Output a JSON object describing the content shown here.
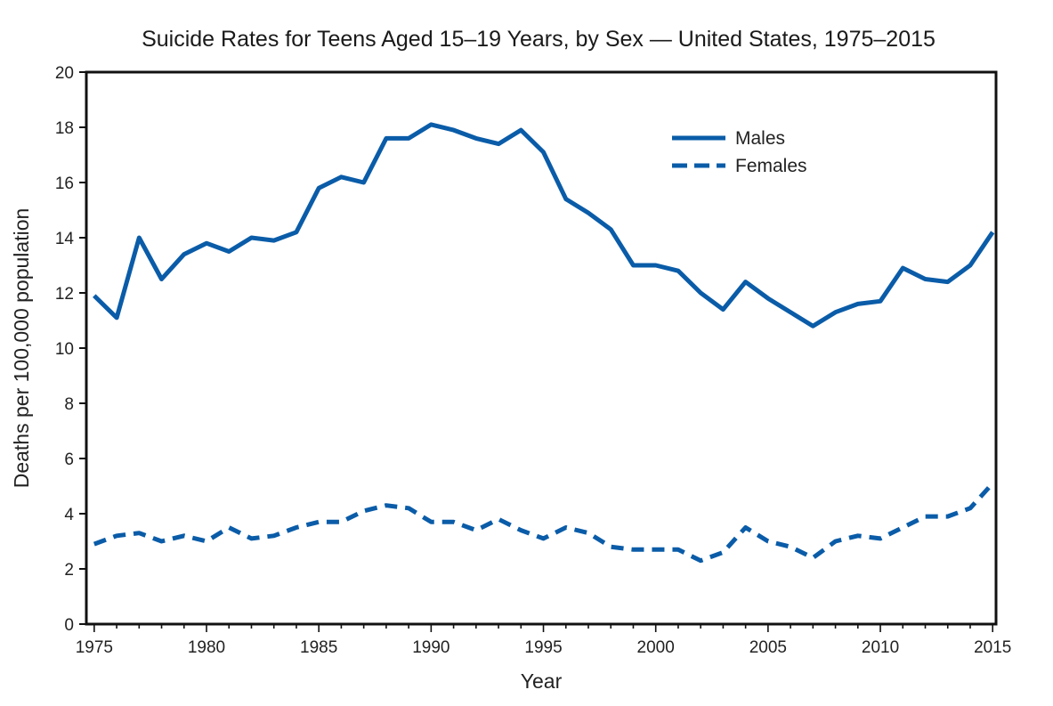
{
  "chart_data": {
    "type": "line",
    "title": "Suicide Rates for Teens Aged 15–19 Years, by Sex — United States, 1975–2015",
    "xlabel": "Year",
    "ylabel": "Deaths per 100,000 population",
    "xlim": [
      1975,
      2015
    ],
    "ylim": [
      0,
      20
    ],
    "xticks": [
      1975,
      1980,
      1985,
      1990,
      1995,
      2000,
      2005,
      2010,
      2015
    ],
    "yticks": [
      0,
      2,
      4,
      6,
      8,
      10,
      12,
      14,
      16,
      18,
      20
    ],
    "grid": false,
    "legend_position": "top-right",
    "x": [
      1975,
      1976,
      1977,
      1978,
      1979,
      1980,
      1981,
      1982,
      1983,
      1984,
      1985,
      1986,
      1987,
      1988,
      1989,
      1990,
      1991,
      1992,
      1993,
      1994,
      1995,
      1996,
      1997,
      1998,
      1999,
      2000,
      2001,
      2002,
      2003,
      2004,
      2005,
      2006,
      2007,
      2008,
      2009,
      2010,
      2011,
      2012,
      2013,
      2014,
      2015
    ],
    "series": [
      {
        "name": "Males",
        "style": "solid",
        "color": "#0a5ca8",
        "values": [
          11.9,
          11.1,
          14.0,
          12.5,
          13.4,
          13.8,
          13.5,
          14.0,
          13.9,
          14.2,
          15.8,
          16.2,
          16.0,
          17.6,
          17.6,
          18.1,
          17.9,
          17.6,
          17.4,
          17.9,
          17.1,
          15.4,
          14.9,
          14.3,
          13.0,
          13.0,
          12.8,
          12.0,
          11.4,
          12.4,
          11.8,
          11.3,
          10.8,
          11.3,
          11.6,
          11.7,
          12.9,
          12.5,
          12.4,
          13.0,
          14.2
        ]
      },
      {
        "name": "Females",
        "style": "dashed",
        "color": "#0a5ca8",
        "values": [
          2.9,
          3.2,
          3.3,
          3.0,
          3.2,
          3.0,
          3.5,
          3.1,
          3.2,
          3.5,
          3.7,
          3.7,
          4.1,
          4.3,
          4.2,
          3.7,
          3.7,
          3.4,
          3.8,
          3.4,
          3.1,
          3.5,
          3.3,
          2.8,
          2.7,
          2.7,
          2.7,
          2.3,
          2.6,
          3.5,
          3.0,
          2.8,
          2.4,
          3.0,
          3.2,
          3.1,
          3.5,
          3.9,
          3.9,
          4.2,
          5.1
        ]
      }
    ]
  }
}
